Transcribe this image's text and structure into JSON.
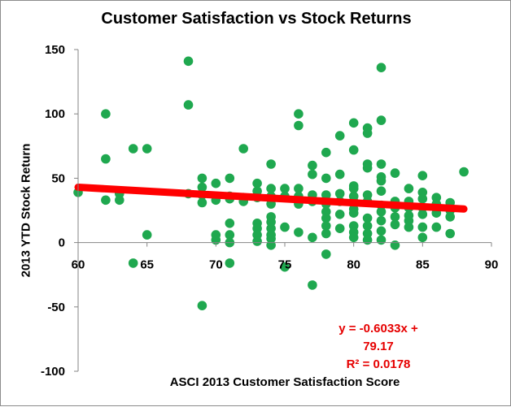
{
  "chart_data": {
    "type": "scatter",
    "title": "Customer Satisfaction vs Stock Returns",
    "xlabel": "ASCI 2013 Customer Satisfaction Score",
    "ylabel": "2013 YTD Stock Return",
    "xlim": [
      60,
      90
    ],
    "ylim": [
      -100,
      150
    ],
    "x_ticks": [
      60,
      65,
      70,
      75,
      80,
      85,
      90
    ],
    "y_ticks": [
      -100,
      -50,
      0,
      50,
      100,
      150
    ],
    "grid": false,
    "legend": false,
    "colors": {
      "points": "#1fa84f",
      "trendline": "#ff0000",
      "equation": "#e60000"
    },
    "trendline": {
      "slope": -0.6033,
      "intercept": 79.17,
      "x_range": [
        60,
        88
      ],
      "equation_text": "y = -0.6033x + 79.17",
      "r2_text": "R² = 0.0178"
    },
    "points": [
      [
        60,
        39
      ],
      [
        62,
        100
      ],
      [
        62,
        65
      ],
      [
        62,
        33
      ],
      [
        63,
        38
      ],
      [
        63,
        33
      ],
      [
        64,
        73
      ],
      [
        64,
        -16
      ],
      [
        65,
        73
      ],
      [
        65,
        6
      ],
      [
        68,
        141
      ],
      [
        68,
        107
      ],
      [
        68,
        38
      ],
      [
        69,
        50
      ],
      [
        69,
        43
      ],
      [
        69,
        37
      ],
      [
        69,
        31
      ],
      [
        69,
        -49
      ],
      [
        70,
        46
      ],
      [
        70,
        33
      ],
      [
        70,
        6
      ],
      [
        70,
        2
      ],
      [
        71,
        50
      ],
      [
        71,
        36
      ],
      [
        71,
        34
      ],
      [
        71,
        15
      ],
      [
        71,
        6
      ],
      [
        71,
        0
      ],
      [
        71,
        -16
      ],
      [
        72,
        73
      ],
      [
        72,
        35
      ],
      [
        72,
        32
      ],
      [
        73,
        46
      ],
      [
        73,
        40
      ],
      [
        73,
        35
      ],
      [
        73,
        15
      ],
      [
        73,
        11
      ],
      [
        73,
        6
      ],
      [
        73,
        1
      ],
      [
        74,
        61
      ],
      [
        74,
        42
      ],
      [
        74,
        36
      ],
      [
        74,
        30
      ],
      [
        74,
        20
      ],
      [
        74,
        16
      ],
      [
        74,
        11
      ],
      [
        74,
        6
      ],
      [
        74,
        3
      ],
      [
        74,
        -2
      ],
      [
        75,
        42
      ],
      [
        75,
        36
      ],
      [
        75,
        12
      ],
      [
        75,
        -19
      ],
      [
        76,
        100
      ],
      [
        76,
        91
      ],
      [
        76,
        42
      ],
      [
        76,
        36
      ],
      [
        76,
        30
      ],
      [
        76,
        8
      ],
      [
        77,
        60
      ],
      [
        77,
        53
      ],
      [
        77,
        37
      ],
      [
        77,
        32
      ],
      [
        77,
        4
      ],
      [
        77,
        -33
      ],
      [
        78,
        70
      ],
      [
        78,
        50
      ],
      [
        78,
        37
      ],
      [
        78,
        30
      ],
      [
        78,
        24
      ],
      [
        78,
        19
      ],
      [
        78,
        13
      ],
      [
        78,
        7
      ],
      [
        78,
        -9
      ],
      [
        79,
        83
      ],
      [
        79,
        53
      ],
      [
        79,
        38
      ],
      [
        79,
        32
      ],
      [
        79,
        22
      ],
      [
        79,
        11
      ],
      [
        80,
        93
      ],
      [
        80,
        72
      ],
      [
        80,
        44
      ],
      [
        80,
        42
      ],
      [
        80,
        36
      ],
      [
        80,
        32
      ],
      [
        80,
        26
      ],
      [
        80,
        23
      ],
      [
        80,
        13
      ],
      [
        80,
        8
      ],
      [
        80,
        4
      ],
      [
        81,
        89
      ],
      [
        81,
        85
      ],
      [
        81,
        61
      ],
      [
        81,
        58
      ],
      [
        81,
        37
      ],
      [
        81,
        32
      ],
      [
        81,
        19
      ],
      [
        81,
        13
      ],
      [
        81,
        7
      ],
      [
        81,
        2
      ],
      [
        82,
        136
      ],
      [
        82,
        95
      ],
      [
        82,
        61
      ],
      [
        82,
        51
      ],
      [
        82,
        48
      ],
      [
        82,
        40
      ],
      [
        82,
        29
      ],
      [
        82,
        24
      ],
      [
        82,
        17
      ],
      [
        82,
        9
      ],
      [
        82,
        2
      ],
      [
        83,
        54
      ],
      [
        83,
        32
      ],
      [
        83,
        27
      ],
      [
        83,
        20
      ],
      [
        83,
        14
      ],
      [
        83,
        -2
      ],
      [
        84,
        42
      ],
      [
        84,
        32
      ],
      [
        84,
        27
      ],
      [
        84,
        21
      ],
      [
        84,
        17
      ],
      [
        84,
        12
      ],
      [
        85,
        52
      ],
      [
        85,
        39
      ],
      [
        85,
        34
      ],
      [
        85,
        27
      ],
      [
        85,
        22
      ],
      [
        85,
        12
      ],
      [
        85,
        4
      ],
      [
        86,
        35
      ],
      [
        86,
        30
      ],
      [
        86,
        23
      ],
      [
        86,
        12
      ],
      [
        87,
        31
      ],
      [
        87,
        25
      ],
      [
        87,
        20
      ],
      [
        87,
        7
      ],
      [
        88,
        55
      ]
    ]
  }
}
